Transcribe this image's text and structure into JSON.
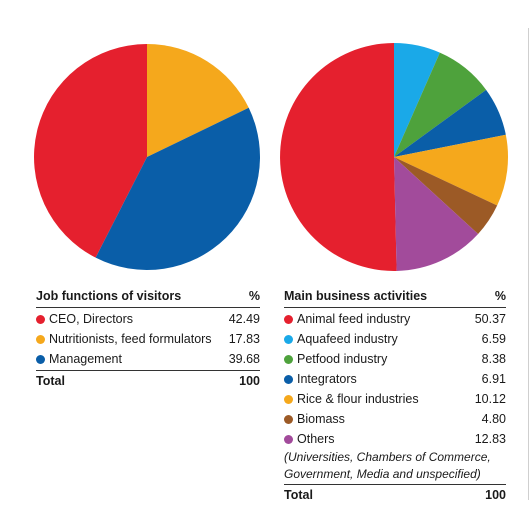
{
  "chart_data": [
    {
      "type": "pie",
      "title": "Job functions of visitors",
      "value_header": "%",
      "categories": [
        "CEO, Directors",
        "Nutritionists, feed formulators",
        "Management"
      ],
      "values": [
        42.49,
        17.83,
        39.68
      ],
      "colors": [
        "#e5202e",
        "#f5a81c",
        "#0a5ea8"
      ],
      "total_label": "Total",
      "total_value": "100"
    },
    {
      "type": "pie",
      "title": "Main business activities",
      "value_header": "%",
      "categories": [
        "Animal feed industry",
        "Aquafeed industry",
        "Petfood industry",
        "Integrators",
        "Rice & flour industries",
        "Biomass",
        "Others"
      ],
      "values": [
        50.37,
        6.59,
        8.38,
        6.91,
        10.12,
        4.8,
        12.83
      ],
      "colors": [
        "#e5202e",
        "#1aa9e8",
        "#4ea23c",
        "#0a5ea8",
        "#f5a81c",
        "#9c5a26",
        "#a24b9b"
      ],
      "note": [
        "(Universities, Chambers of Commerce,",
        "Government, Media and unspecified)"
      ],
      "total_label": "Total",
      "total_value": "100"
    }
  ]
}
